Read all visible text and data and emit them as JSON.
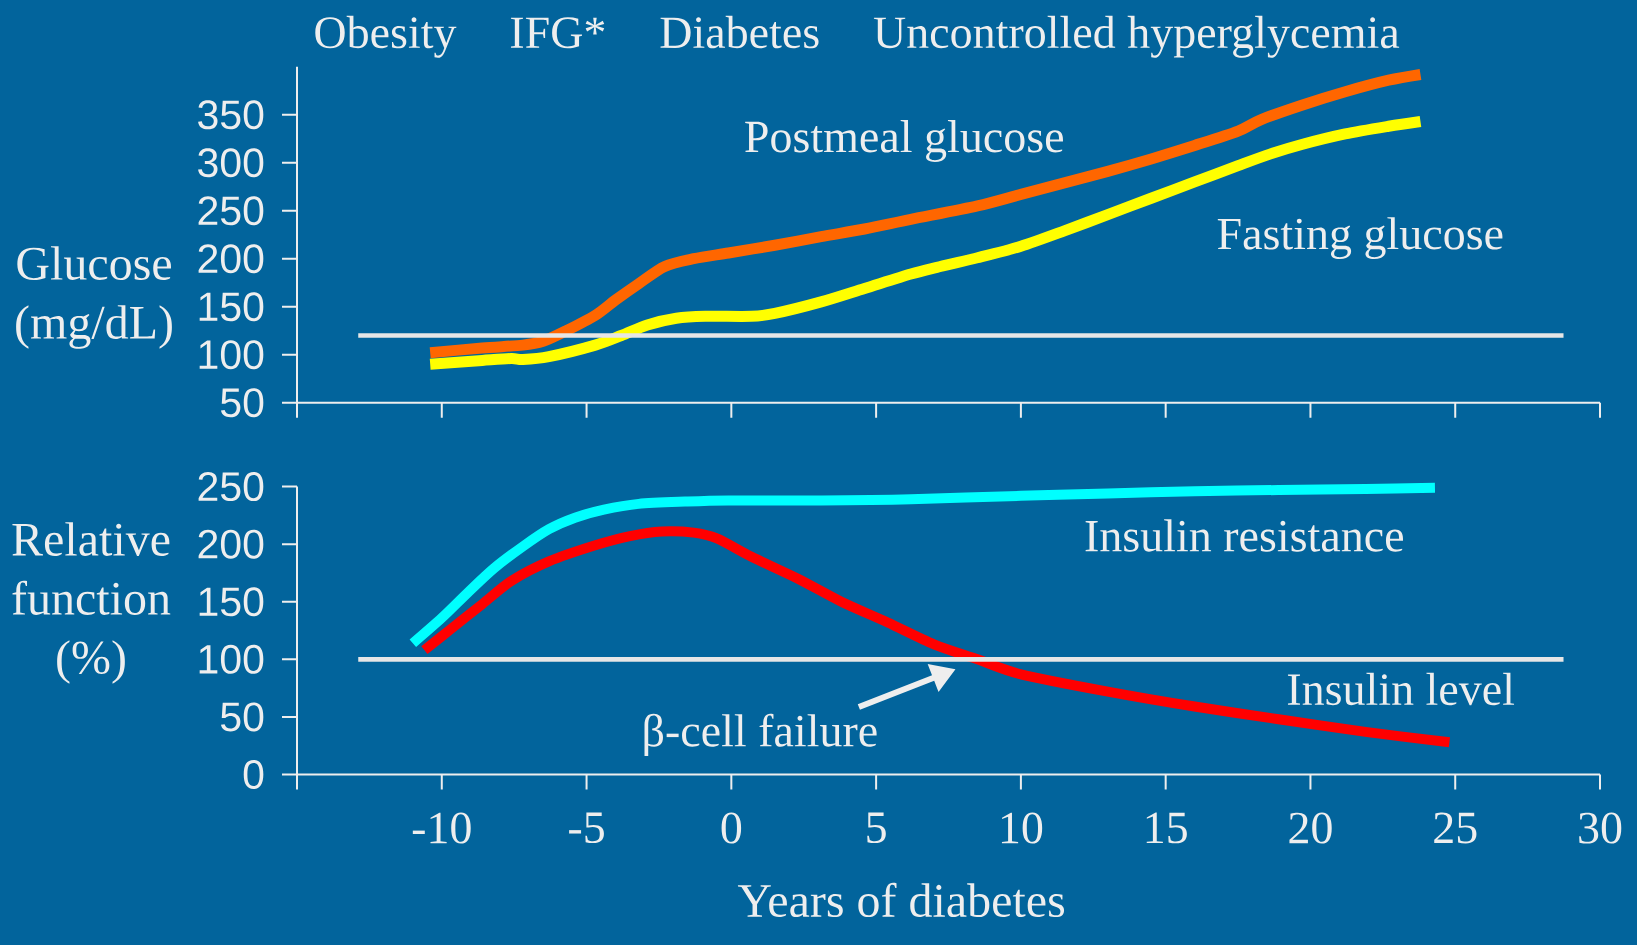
{
  "chart_data": [
    {
      "type": "line",
      "annotations": [
        "Obesity",
        "IFG*",
        "Diabetes",
        "Uncontrolled hyperglycemia"
      ],
      "ylabel": "Glucose (mg/dL)",
      "xlim": [
        -15,
        30
      ],
      "xticks": [
        {
          "value": -15,
          "label": null
        },
        -10,
        -5,
        0,
        5,
        10,
        15,
        20,
        25,
        30
      ],
      "ylim": [
        50,
        400
      ],
      "yticks": [
        50,
        100,
        150,
        200,
        250,
        300,
        350
      ],
      "tick_labels": "y",
      "ref_lines": [
        {
          "axis": "y",
          "value": 120,
          "color": "#e6e6e6"
        }
      ],
      "series": [
        {
          "name": "Postmeal glucose",
          "color": "#ff6600",
          "x": [
            -10.4,
            -8.6,
            -7.2,
            -6.5,
            -5.7,
            -4.7,
            -4.0,
            -3.2,
            -2.3,
            -1.3,
            -0.1,
            1.5,
            3.1,
            4.6,
            6.2,
            8.5,
            10.0,
            11.5,
            13.0,
            14.5,
            16.0,
            17.5,
            18.3,
            19.7,
            21.2,
            22.7,
            23.8
          ],
          "values": [
            102,
            107,
            110,
            114,
            125,
            141,
            157,
            174,
            192,
            200,
            206,
            214,
            223,
            231,
            241,
            255,
            267,
            279,
            291,
            304,
            318,
            333,
            345,
            360,
            374,
            386,
            392
          ]
        },
        {
          "name": "Fasting glucose",
          "color": "#ffff00",
          "x": [
            -10.4,
            -8.6,
            -7.6,
            -7.2,
            -6.3,
            -4.7,
            -3.8,
            -2.9,
            -1.9,
            -0.9,
            0.7,
            1.5,
            3.1,
            4.6,
            6.2,
            7.1,
            8.5,
            10.0,
            11.5,
            13.0,
            14.5,
            16.0,
            17.5,
            18.6,
            19.7,
            21.2,
            22.7,
            23.8
          ],
          "values": [
            90,
            94,
            96,
            95,
            98,
            110,
            120,
            131,
            138,
            140,
            140,
            143,
            155,
            169,
            184,
            191,
            201,
            213,
            229,
            246,
            263,
            280,
            297,
            309,
            319,
            330,
            338,
            343
          ]
        }
      ]
    },
    {
      "type": "line",
      "xlabel": "Years of diabetes",
      "ylabel": "Relative function (%)",
      "annotations": [
        {
          "text": "β-cell failure",
          "x": 8.5,
          "y": 100
        }
      ],
      "xlim": [
        -15,
        30
      ],
      "xticks": [
        {
          "value": -15,
          "label": null
        },
        -10,
        -5,
        0,
        5,
        10,
        15,
        20,
        25,
        30
      ],
      "ylim": [
        0,
        250
      ],
      "yticks": [
        0,
        50,
        100,
        150,
        200,
        250
      ],
      "ref_lines": [
        {
          "axis": "y",
          "value": 100,
          "color": "#e6e6e6"
        }
      ],
      "series": [
        {
          "name": "Insulin resistance",
          "color": "#00ffff",
          "x": [
            -11.0,
            -10.0,
            -9.1,
            -8.2,
            -7.2,
            -6.3,
            -5.4,
            -4.4,
            -3.2,
            -1.6,
            -0.1,
            3.1,
            6.2,
            10.0,
            13.0,
            16.0,
            18.9,
            21.9,
            24.3
          ],
          "values": [
            114,
            136,
            158,
            179,
            198,
            213,
            223,
            230,
            235,
            237,
            238,
            238,
            239,
            242,
            244,
            246,
            247,
            248,
            249
          ]
        },
        {
          "name": "Insulin level",
          "color": "#ff0000",
          "x": [
            -10.6,
            -9.7,
            -8.6,
            -7.6,
            -6.3,
            -4.7,
            -3.5,
            -2.4,
            -1.3,
            -0.5,
            0.7,
            2.3,
            3.8,
            5.4,
            7.0,
            8.5,
            10.0,
            13.0,
            16.0,
            18.9,
            21.9,
            24.8
          ],
          "values": [
            108,
            126,
            148,
            168,
            185,
            199,
            207,
            211,
            210,
            205,
            189,
            170,
            150,
            132,
            113,
            100,
            87,
            72,
            59,
            48,
            37,
            28
          ]
        }
      ]
    }
  ]
}
